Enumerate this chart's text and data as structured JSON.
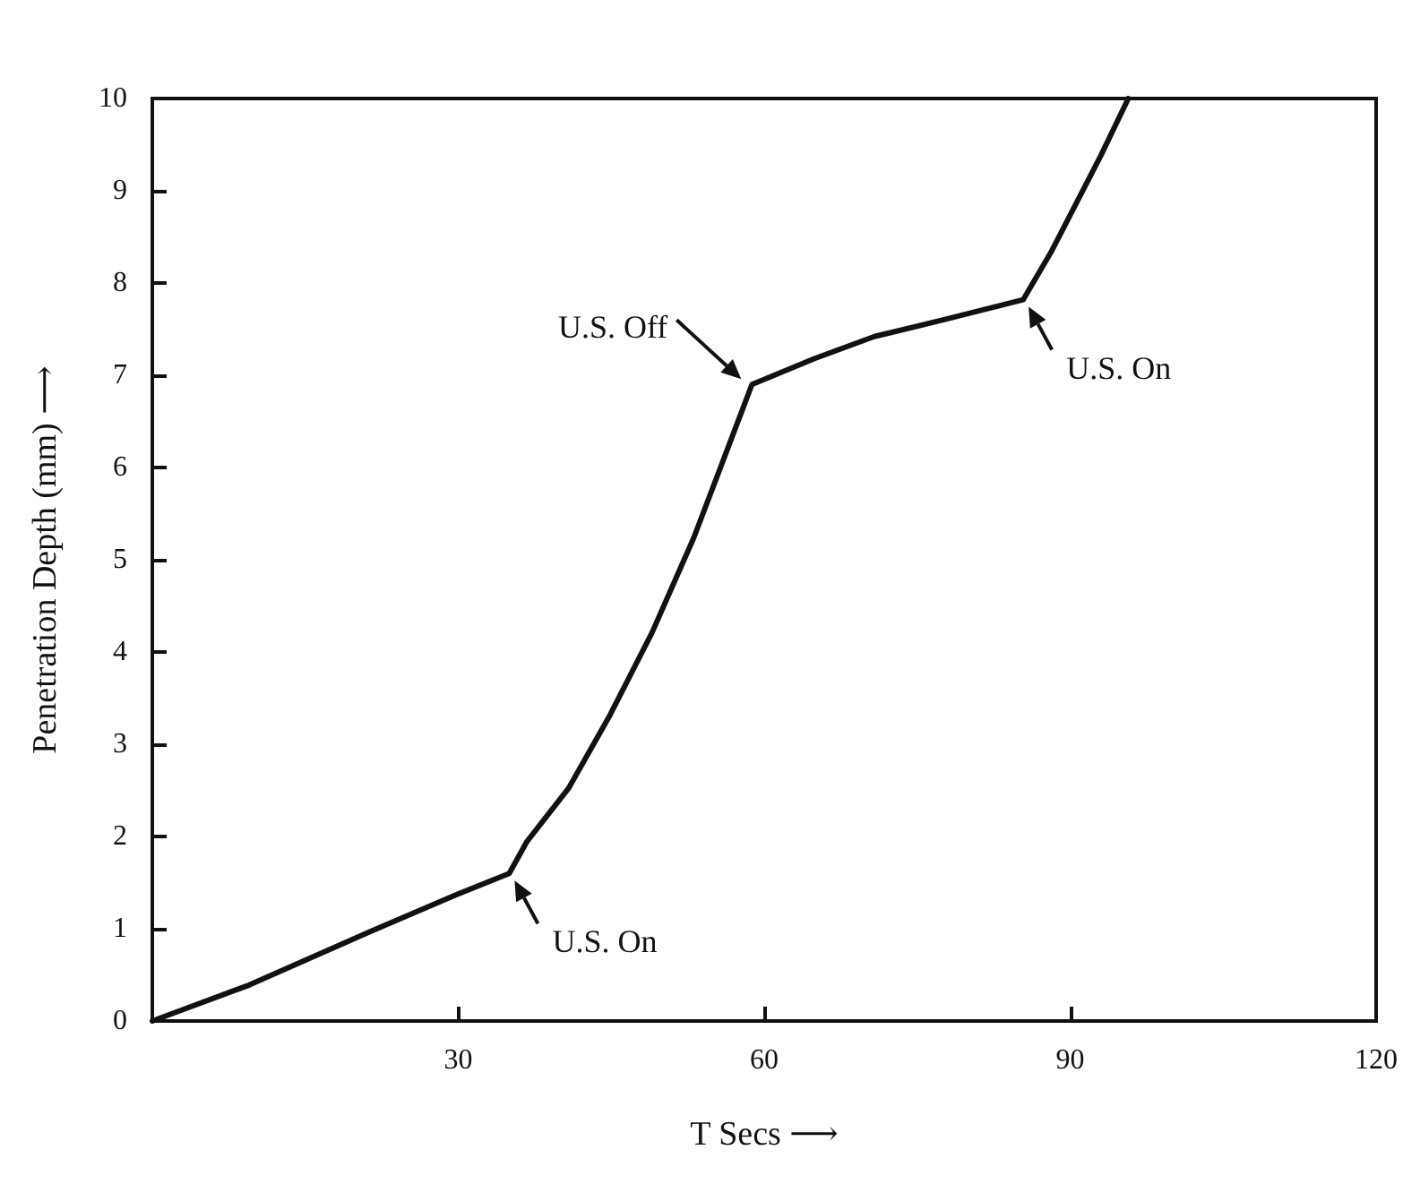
{
  "chart_data": {
    "type": "line",
    "xlabel": "T Secs ⟶",
    "ylabel": "Penetration Depth (mm) ⟶",
    "x": [
      0,
      9.5,
      21.4,
      29.6,
      35,
      36.7,
      40.8,
      44.8,
      49,
      53.1,
      56.4,
      58.8,
      64.9,
      70.8,
      77.9,
      85.4,
      88.2,
      93,
      95.7
    ],
    "values": [
      0,
      0.39,
      0.97,
      1.36,
      1.6,
      1.94,
      2.52,
      3.3,
      4.21,
      5.24,
      6.2,
      6.9,
      7.18,
      7.42,
      7.61,
      7.82,
      8.35,
      9.38,
      10
    ],
    "color": "#111111",
    "marker": "none",
    "line_style": "solid",
    "xlim": [
      0,
      120
    ],
    "xticks": [
      30,
      60,
      90,
      120
    ],
    "ylim": [
      0,
      10
    ],
    "yticks": [
      0,
      1,
      2,
      3,
      4,
      5,
      6,
      7,
      8,
      9,
      10
    ],
    "annotations": [
      {
        "text": "U.S. On",
        "x": 35,
        "y": 1.6
      },
      {
        "text": "U.S. Off",
        "x": 58.8,
        "y": 6.9
      },
      {
        "text": "U.S. On",
        "x": 85.4,
        "y": 7.82
      }
    ]
  }
}
